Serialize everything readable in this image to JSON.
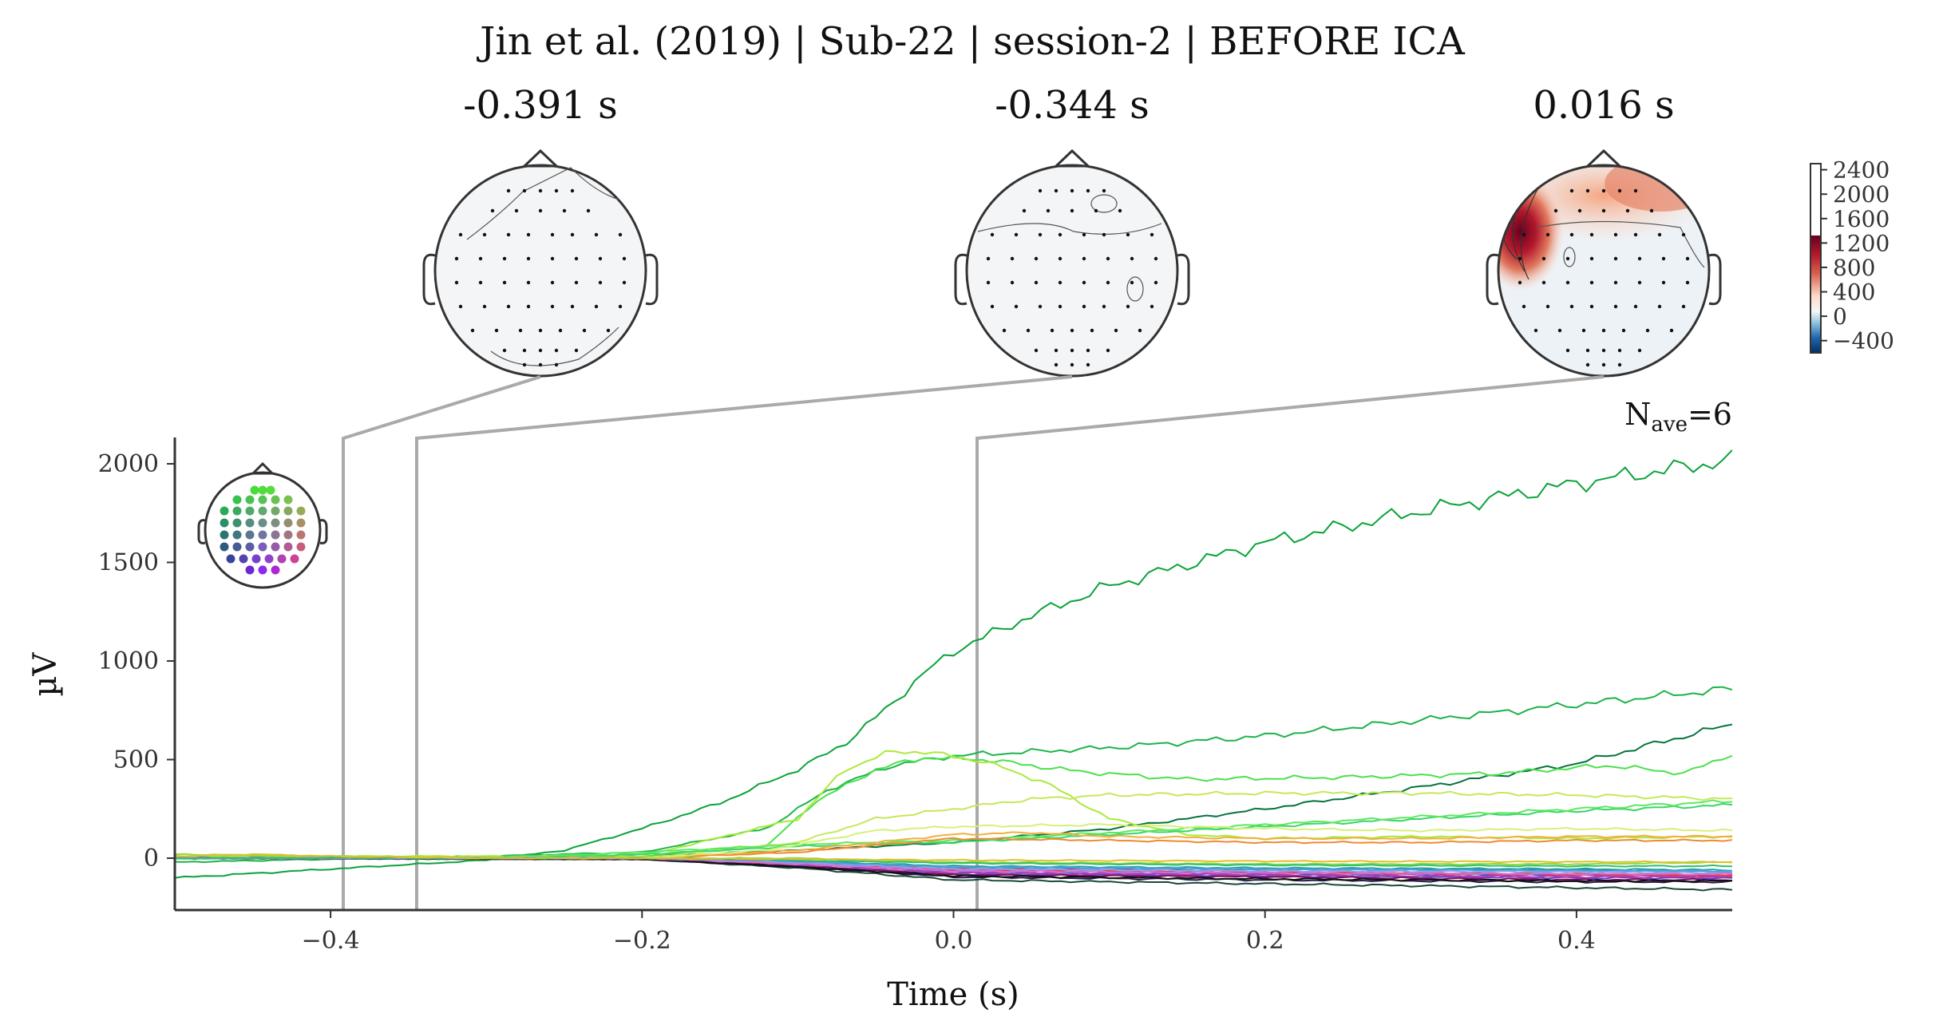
{
  "chart_data": {
    "type": "line",
    "title": "Jin et al. (2019) | Sub-22 | session-2 | BEFORE ICA",
    "xlabel": "Time (s)",
    "ylabel": "µV",
    "xlim": [
      -0.5,
      0.5
    ],
    "ylim": [
      -290,
      2130
    ],
    "xticks": [
      -0.4,
      -0.2,
      0.0,
      0.2,
      0.4
    ],
    "xtick_labels": [
      "−0.4",
      "−0.2",
      "0.0",
      "0.2",
      "0.4"
    ],
    "yticks": [
      0,
      500,
      1000,
      1500,
      2000
    ],
    "ytick_labels": [
      "0",
      "500",
      "1000",
      "1500",
      "2000"
    ],
    "nave_base": "N",
    "nave_sub": "ave",
    "nave_value": "=6",
    "topomap_times": [
      -0.391,
      -0.344,
      0.016
    ],
    "topomap_titles": [
      "-0.391 s",
      "-0.344 s",
      "0.016 s"
    ],
    "colorbar": {
      "cmap": "RdBu_r",
      "ticks": [
        2400,
        2000,
        1600,
        1200,
        800,
        400,
        0,
        -400
      ],
      "tick_labels": [
        "2400",
        "2000",
        "1600",
        "1200",
        "800",
        "400",
        "0",
        "−400"
      ],
      "range": [
        -600,
        2500
      ]
    },
    "series": [
      {
        "color": "#0aa33a",
        "values": [
          [
            -0.5,
            -100
          ],
          [
            -0.4,
            -55
          ],
          [
            -0.3,
            -10
          ],
          [
            -0.25,
            40
          ],
          [
            -0.2,
            150
          ],
          [
            -0.15,
            280
          ],
          [
            -0.1,
            450
          ],
          [
            -0.07,
            580
          ],
          [
            -0.04,
            780
          ],
          [
            -0.02,
            930
          ],
          [
            0.0,
            1050
          ],
          [
            0.05,
            1230
          ],
          [
            0.1,
            1380
          ],
          [
            0.15,
            1490
          ],
          [
            0.2,
            1600
          ],
          [
            0.3,
            1760
          ],
          [
            0.4,
            1900
          ],
          [
            0.5,
            2020
          ]
        ]
      },
      {
        "color": "#1db34a",
        "values": [
          [
            -0.5,
            -20
          ],
          [
            -0.3,
            10
          ],
          [
            -0.2,
            30
          ],
          [
            -0.12,
            150
          ],
          [
            -0.08,
            350
          ],
          [
            -0.04,
            470
          ],
          [
            0.0,
            520
          ],
          [
            0.1,
            560
          ],
          [
            0.2,
            620
          ],
          [
            0.3,
            700
          ],
          [
            0.4,
            780
          ],
          [
            0.5,
            860
          ]
        ]
      },
      {
        "color": "#06733e",
        "values": [
          [
            -0.5,
            10
          ],
          [
            -0.3,
            0
          ],
          [
            -0.2,
            10
          ],
          [
            -0.1,
            40
          ],
          [
            0.0,
            80
          ],
          [
            0.1,
            150
          ],
          [
            0.2,
            250
          ],
          [
            0.3,
            360
          ],
          [
            0.4,
            480
          ],
          [
            0.5,
            680
          ]
        ]
      },
      {
        "color": "#4de04d",
        "values": [
          [
            -0.5,
            0
          ],
          [
            -0.2,
            10
          ],
          [
            -0.12,
            60
          ],
          [
            -0.09,
            280
          ],
          [
            -0.05,
            450
          ],
          [
            -0.02,
            510
          ],
          [
            0.02,
            500
          ],
          [
            0.08,
            440
          ],
          [
            0.15,
            400
          ],
          [
            0.25,
            410
          ],
          [
            0.35,
            430
          ],
          [
            0.42,
            470
          ],
          [
            0.47,
            430
          ],
          [
            0.5,
            530
          ]
        ]
      },
      {
        "color": "#a9ea3a",
        "values": [
          [
            -0.5,
            10
          ],
          [
            -0.2,
            10
          ],
          [
            -0.1,
            200
          ],
          [
            -0.07,
            450
          ],
          [
            -0.04,
            540
          ],
          [
            -0.02,
            540
          ],
          [
            0.02,
            490
          ],
          [
            0.06,
            380
          ],
          [
            0.1,
            200
          ],
          [
            0.15,
            120
          ],
          [
            0.2,
            100
          ],
          [
            0.3,
            110
          ],
          [
            0.4,
            100
          ],
          [
            0.5,
            110
          ]
        ]
      },
      {
        "color": "#c6e85a",
        "values": [
          [
            -0.5,
            0
          ],
          [
            -0.2,
            0
          ],
          [
            -0.1,
            80
          ],
          [
            -0.05,
            200
          ],
          [
            0.0,
            250
          ],
          [
            0.05,
            300
          ],
          [
            0.1,
            320
          ],
          [
            0.2,
            330
          ],
          [
            0.3,
            330
          ],
          [
            0.4,
            320
          ],
          [
            0.5,
            300
          ]
        ]
      },
      {
        "color": "#39d668",
        "values": [
          [
            -0.5,
            0
          ],
          [
            -0.3,
            0
          ],
          [
            -0.2,
            20
          ],
          [
            -0.1,
            60
          ],
          [
            0.0,
            80
          ],
          [
            0.1,
            120
          ],
          [
            0.2,
            160
          ],
          [
            0.3,
            200
          ],
          [
            0.4,
            240
          ],
          [
            0.5,
            270
          ]
        ]
      },
      {
        "color": "#5ee85e",
        "values": [
          [
            -0.5,
            0
          ],
          [
            -0.3,
            0
          ],
          [
            -0.2,
            30
          ],
          [
            -0.1,
            70
          ],
          [
            0.0,
            90
          ],
          [
            0.1,
            130
          ],
          [
            0.2,
            170
          ],
          [
            0.3,
            210
          ],
          [
            0.4,
            250
          ],
          [
            0.5,
            290
          ]
        ]
      },
      {
        "color": "#f0b040",
        "values": [
          [
            -0.5,
            0
          ],
          [
            -0.2,
            0
          ],
          [
            -0.1,
            40
          ],
          [
            0.0,
            120
          ],
          [
            0.05,
            130
          ],
          [
            0.1,
            110
          ],
          [
            0.2,
            100
          ],
          [
            0.3,
            100
          ],
          [
            0.4,
            110
          ],
          [
            0.5,
            110
          ]
        ]
      },
      {
        "color": "#f08a30",
        "values": [
          [
            -0.5,
            0
          ],
          [
            -0.2,
            0
          ],
          [
            -0.1,
            30
          ],
          [
            0.0,
            100
          ],
          [
            0.1,
            90
          ],
          [
            0.2,
            80
          ],
          [
            0.3,
            80
          ],
          [
            0.4,
            90
          ],
          [
            0.5,
            90
          ]
        ]
      },
      {
        "color": "#d6f07a",
        "values": [
          [
            -0.5,
            0
          ],
          [
            -0.2,
            0
          ],
          [
            -0.12,
            40
          ],
          [
            -0.05,
            140
          ],
          [
            0.0,
            160
          ],
          [
            0.1,
            170
          ],
          [
            0.2,
            150
          ],
          [
            0.3,
            140
          ],
          [
            0.4,
            150
          ],
          [
            0.5,
            140
          ]
        ]
      },
      {
        "color": "#8fdc3a",
        "values": [
          [
            -0.5,
            20
          ],
          [
            -0.3,
            0
          ],
          [
            -0.1,
            0
          ],
          [
            0.0,
            -20
          ],
          [
            0.2,
            -30
          ],
          [
            0.4,
            -30
          ],
          [
            0.5,
            -20
          ]
        ]
      },
      {
        "color": "#2d8ab0",
        "values": [
          [
            -0.5,
            0
          ],
          [
            -0.2,
            0
          ],
          [
            -0.1,
            -20
          ],
          [
            0.0,
            -50
          ],
          [
            0.2,
            -60
          ],
          [
            0.4,
            -60
          ],
          [
            0.5,
            -70
          ]
        ]
      },
      {
        "color": "#3b5bd9",
        "values": [
          [
            -0.5,
            0
          ],
          [
            -0.2,
            -5
          ],
          [
            -0.1,
            -30
          ],
          [
            0.0,
            -70
          ],
          [
            0.2,
            -80
          ],
          [
            0.4,
            -85
          ],
          [
            0.5,
            -90
          ]
        ]
      },
      {
        "color": "#6a3fd0",
        "values": [
          [
            -0.5,
            0
          ],
          [
            -0.2,
            -5
          ],
          [
            -0.1,
            -40
          ],
          [
            0.0,
            -80
          ],
          [
            0.2,
            -90
          ],
          [
            0.4,
            -100
          ],
          [
            0.5,
            -100
          ]
        ]
      },
      {
        "color": "#b03fb0",
        "values": [
          [
            -0.5,
            0
          ],
          [
            -0.2,
            -5
          ],
          [
            -0.1,
            -40
          ],
          [
            0.0,
            -75
          ],
          [
            0.2,
            -85
          ],
          [
            0.4,
            -95
          ],
          [
            0.5,
            -95
          ]
        ]
      },
      {
        "color": "#d63a6a",
        "values": [
          [
            -0.5,
            0
          ],
          [
            -0.2,
            -5
          ],
          [
            -0.1,
            -30
          ],
          [
            0.0,
            -60
          ],
          [
            0.2,
            -75
          ],
          [
            0.4,
            -85
          ],
          [
            0.5,
            -90
          ]
        ]
      },
      {
        "color": "#e8404a",
        "values": [
          [
            -0.5,
            0
          ],
          [
            -0.2,
            -5
          ],
          [
            -0.1,
            -25
          ],
          [
            0.0,
            -55
          ],
          [
            0.2,
            -70
          ],
          [
            0.4,
            -80
          ],
          [
            0.5,
            -85
          ]
        ]
      },
      {
        "color": "#7a1060",
        "values": [
          [
            -0.5,
            0
          ],
          [
            -0.2,
            -5
          ],
          [
            -0.1,
            -40
          ],
          [
            0.0,
            -85
          ],
          [
            0.2,
            -95
          ],
          [
            0.4,
            -110
          ],
          [
            0.5,
            -110
          ]
        ]
      },
      {
        "color": "#2a1a4a",
        "values": [
          [
            -0.5,
            0
          ],
          [
            -0.2,
            -5
          ],
          [
            -0.1,
            -45
          ],
          [
            0.0,
            -95
          ],
          [
            0.2,
            -110
          ],
          [
            0.4,
            -120
          ],
          [
            0.5,
            -120
          ]
        ]
      },
      {
        "color": "#1c4a3a",
        "values": [
          [
            -0.5,
            0
          ],
          [
            -0.2,
            -5
          ],
          [
            -0.1,
            -50
          ],
          [
            0.0,
            -110
          ],
          [
            0.2,
            -130
          ],
          [
            0.4,
            -150
          ],
          [
            0.5,
            -160
          ]
        ]
      },
      {
        "color": "#111111",
        "values": [
          [
            -0.5,
            0
          ],
          [
            -0.2,
            -5
          ],
          [
            -0.1,
            -45
          ],
          [
            0.0,
            -90
          ],
          [
            0.2,
            -105
          ],
          [
            0.4,
            -115
          ],
          [
            0.5,
            -115
          ]
        ]
      },
      {
        "color": "#28a0a0",
        "values": [
          [
            -0.5,
            0
          ],
          [
            -0.2,
            0
          ],
          [
            -0.1,
            -15
          ],
          [
            0.0,
            -40
          ],
          [
            0.2,
            -50
          ],
          [
            0.4,
            -55
          ],
          [
            0.5,
            -60
          ]
        ]
      },
      {
        "color": "#4aa0e0",
        "values": [
          [
            -0.5,
            0
          ],
          [
            -0.2,
            0
          ],
          [
            -0.1,
            -20
          ],
          [
            0.0,
            -45
          ],
          [
            0.2,
            -55
          ],
          [
            0.4,
            -65
          ],
          [
            0.5,
            -65
          ]
        ]
      },
      {
        "color": "#90a0e8",
        "values": [
          [
            -0.5,
            0
          ],
          [
            -0.2,
            0
          ],
          [
            -0.1,
            -25
          ],
          [
            0.0,
            -55
          ],
          [
            0.2,
            -65
          ],
          [
            0.4,
            -70
          ],
          [
            0.5,
            -75
          ]
        ]
      },
      {
        "color": "#d070d8",
        "values": [
          [
            -0.5,
            0
          ],
          [
            -0.2,
            0
          ],
          [
            -0.1,
            -30
          ],
          [
            0.0,
            -65
          ],
          [
            0.2,
            -75
          ],
          [
            0.4,
            -80
          ],
          [
            0.5,
            -80
          ]
        ]
      },
      {
        "color": "#30c070",
        "values": [
          [
            -0.5,
            0
          ],
          [
            -0.2,
            0
          ],
          [
            -0.1,
            -10
          ],
          [
            0.0,
            -25
          ],
          [
            0.2,
            -35
          ],
          [
            0.4,
            -40
          ],
          [
            0.5,
            -40
          ]
        ]
      },
      {
        "color": "#e0c030",
        "values": [
          [
            -0.5,
            10
          ],
          [
            -0.45,
            20
          ],
          [
            -0.4,
            10
          ],
          [
            -0.3,
            0
          ],
          [
            -0.2,
            0
          ],
          [
            0.0,
            -10
          ],
          [
            0.2,
            -15
          ],
          [
            0.5,
            -20
          ]
        ]
      }
    ]
  }
}
